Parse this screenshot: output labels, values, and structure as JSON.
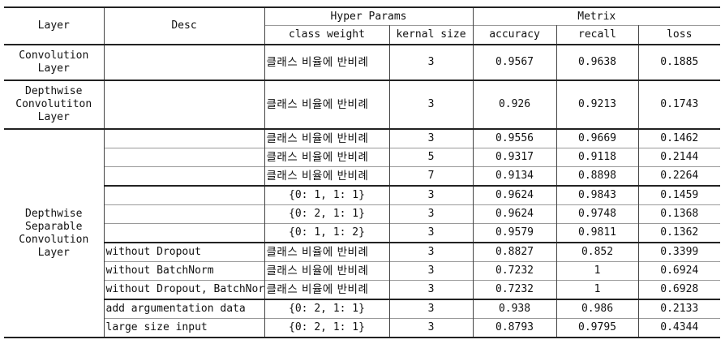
{
  "header": {
    "layer": "Layer",
    "desc": "Desc",
    "hyper_params": "Hyper Params",
    "metrix": "Metrix",
    "class_weight": "class weight",
    "kernal_size": "kernal size",
    "accuracy": "accuracy",
    "recall": "recall",
    "loss": "loss"
  },
  "groups": {
    "conv": "Convolution Layer",
    "dw": "Depthwise Convolutiton Layer",
    "dws": "Depthwise Separable Convolution Layer"
  },
  "rows": [
    {
      "desc": "",
      "weight": "클래스 비율에 반비례",
      "kernel": "3",
      "accuracy": "0.9567",
      "recall": "0.9638",
      "loss": "0.1885"
    },
    {
      "desc": "",
      "weight": "클래스 비율에 반비례",
      "kernel": "3",
      "accuracy": "0.926",
      "recall": "0.9213",
      "loss": "0.1743"
    },
    {
      "desc": "",
      "weight": "클래스 비율에 반비례",
      "kernel": "3",
      "accuracy": "0.9556",
      "recall": "0.9669",
      "loss": "0.1462"
    },
    {
      "desc": "",
      "weight": "클래스 비율에 반비례",
      "kernel": "5",
      "accuracy": "0.9317",
      "recall": "0.9118",
      "loss": "0.2144"
    },
    {
      "desc": "",
      "weight": "클래스 비율에 반비례",
      "kernel": "7",
      "accuracy": "0.9134",
      "recall": "0.8898",
      "loss": "0.2264"
    },
    {
      "desc": "",
      "weight": "{0: 1, 1: 1}",
      "kernel": "3",
      "accuracy": "0.9624",
      "recall": "0.9843",
      "loss": "0.1459"
    },
    {
      "desc": "",
      "weight": "{0: 2, 1: 1}",
      "kernel": "3",
      "accuracy": "0.9624",
      "recall": "0.9748",
      "loss": "0.1368"
    },
    {
      "desc": "",
      "weight": "{0: 1, 1: 2}",
      "kernel": "3",
      "accuracy": "0.9579",
      "recall": "0.9811",
      "loss": "0.1362"
    },
    {
      "desc": "without Dropout",
      "weight": "클래스 비율에 반비례",
      "kernel": "3",
      "accuracy": "0.8827",
      "recall": "0.852",
      "loss": "0.3399"
    },
    {
      "desc": "without BatchNorm",
      "weight": "클래스 비율에 반비례",
      "kernel": "3",
      "accuracy": "0.7232",
      "recall": "1",
      "loss": "0.6924"
    },
    {
      "desc": "without Dropout, BatchNorm",
      "weight": "클래스 비율에 반비례",
      "kernel": "3",
      "accuracy": "0.7232",
      "recall": "1",
      "loss": "0.6928"
    },
    {
      "desc": "add argumentation data",
      "weight": "{0: 2, 1: 1}",
      "kernel": "3",
      "accuracy": "0.938",
      "recall": "0.986",
      "loss": "0.2133"
    },
    {
      "desc": "large size input",
      "weight": "{0: 2, 1: 1}",
      "kernel": "3",
      "accuracy": "0.8793",
      "recall": "0.9795",
      "loss": "0.4344"
    }
  ]
}
